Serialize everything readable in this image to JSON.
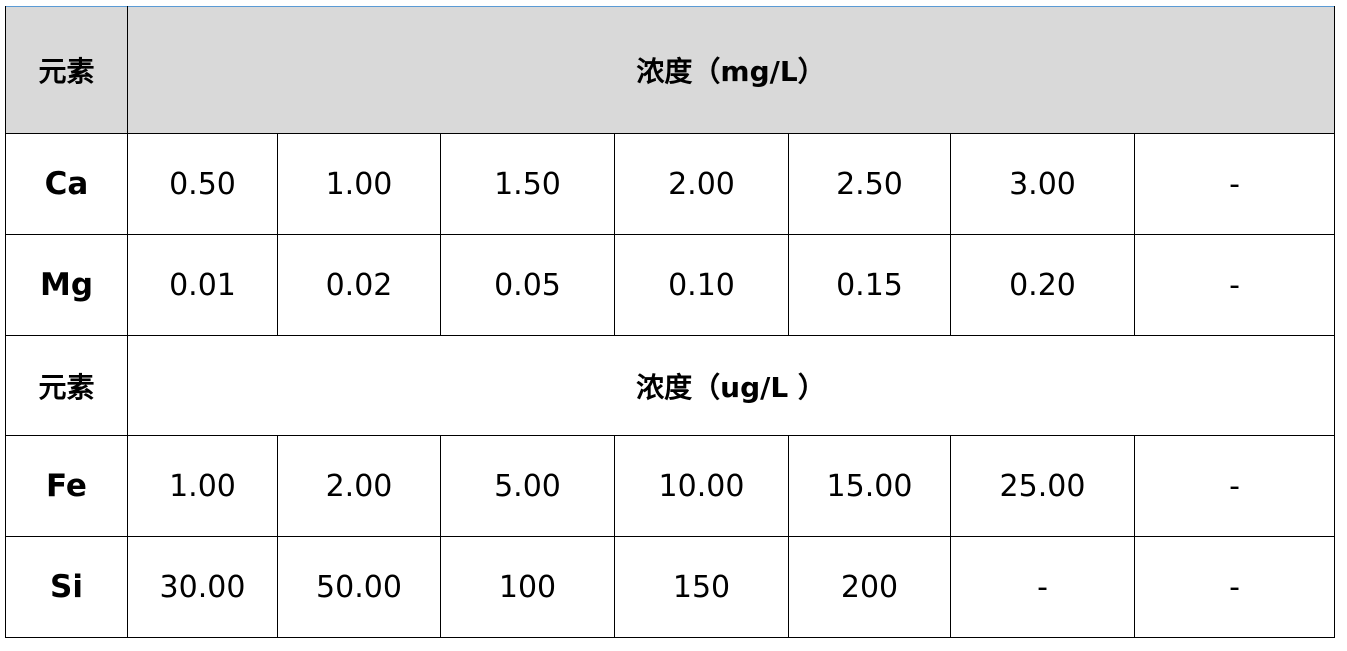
{
  "header": {
    "element_label": "元素",
    "concentration_label": "浓度（mg/L）"
  },
  "group1_rows": [
    {
      "element": "Ca",
      "values": [
        "0.50",
        "1.00",
        "1.50",
        "2.00",
        "2.50",
        "3.00",
        "-"
      ]
    },
    {
      "element": "Mg",
      "values": [
        "0.01",
        "0.02",
        "0.05",
        "0.10",
        "0.15",
        "0.20",
        "-"
      ]
    }
  ],
  "subheader": {
    "element_label": "元素",
    "concentration_label": "浓度（ug/L ）"
  },
  "group2_rows": [
    {
      "element": "Fe",
      "values": [
        "1.00",
        "2.00",
        "5.00",
        "10.00",
        "15.00",
        "25.00",
        "-"
      ]
    },
    {
      "element": "Si",
      "values": [
        "30.00",
        "50.00",
        "100",
        "150",
        "200",
        "-",
        "-"
      ]
    }
  ],
  "colors": {
    "header_bg": "#d9d9d9",
    "top_border": "#5b9bd5"
  }
}
